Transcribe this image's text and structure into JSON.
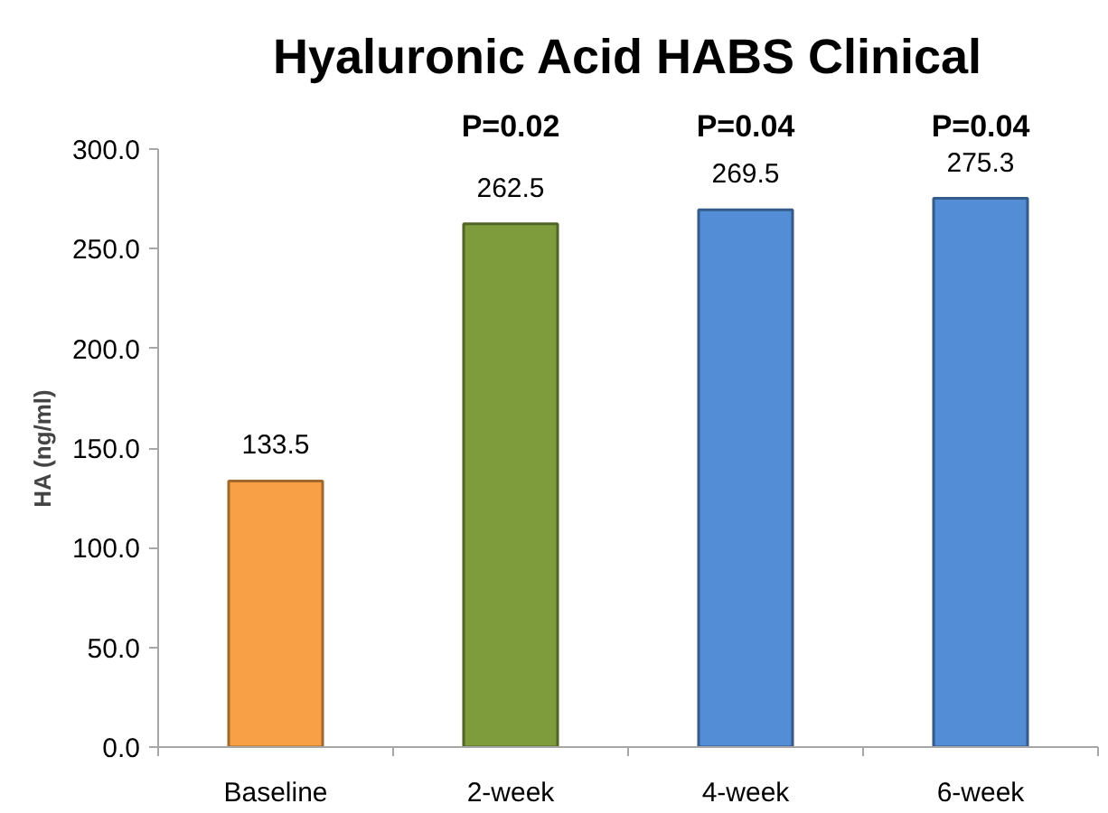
{
  "chart_data": {
    "type": "bar",
    "title": "Hyaluronic Acid HABS Clinical",
    "ylabel": "HA (ng/ml)",
    "categories": [
      "Baseline",
      "2-week",
      "4-week",
      "6-week"
    ],
    "values": [
      133.5,
      262.5,
      269.5,
      275.3
    ],
    "colors": [
      "#f7a046",
      "#7e9c3c",
      "#538dd5",
      "#538dd5"
    ],
    "data_labels": true,
    "ylim": [
      0,
      300
    ],
    "yticks": [
      {
        "value": 0,
        "label": "0.0"
      },
      {
        "value": 50,
        "label": "50.0"
      },
      {
        "value": 100,
        "label": "100.0"
      },
      {
        "value": 150,
        "label": "150.0"
      },
      {
        "value": 200,
        "label": "200.0"
      },
      {
        "value": 250,
        "label": "250.0"
      },
      {
        "value": 300,
        "label": "300.0"
      }
    ],
    "annotations": [
      "P=0.02",
      "P=0.04",
      "P=0.04"
    ]
  }
}
